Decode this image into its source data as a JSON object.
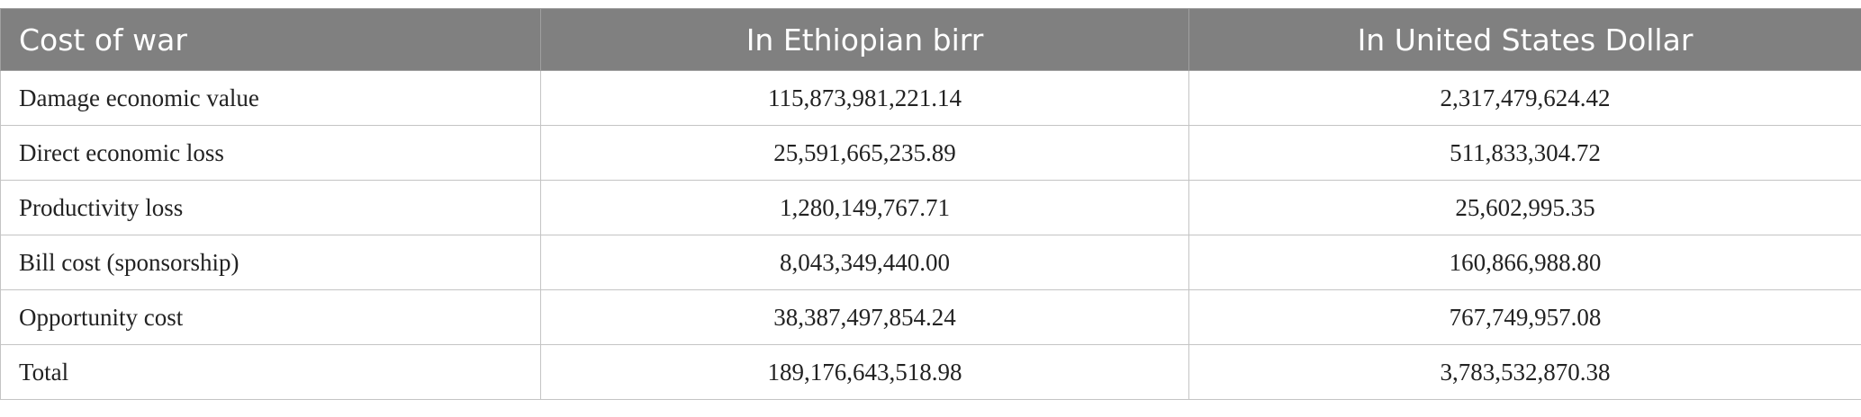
{
  "table": {
    "header": [
      "Cost of war",
      "In Ethiopian birr",
      "In United States Dollar"
    ],
    "rows": [
      [
        "Damage economic value",
        "115,873,981,221.14",
        "2,317,479,624.42"
      ],
      [
        "Direct economic loss",
        "25,591,665,235.89",
        "511,833,304.72"
      ],
      [
        "Productivity loss",
        "1,280,149,767.71",
        "25,602,995.35"
      ],
      [
        "Bill cost (sponsorship)",
        "8,043,349,440.00",
        "160,866,988.80"
      ],
      [
        "Opportunity cost",
        "38,387,497,854.24",
        "767,749,957.08"
      ],
      [
        "Total",
        "189,176,643,518.98",
        "3,783,532,870.38"
      ]
    ]
  }
}
